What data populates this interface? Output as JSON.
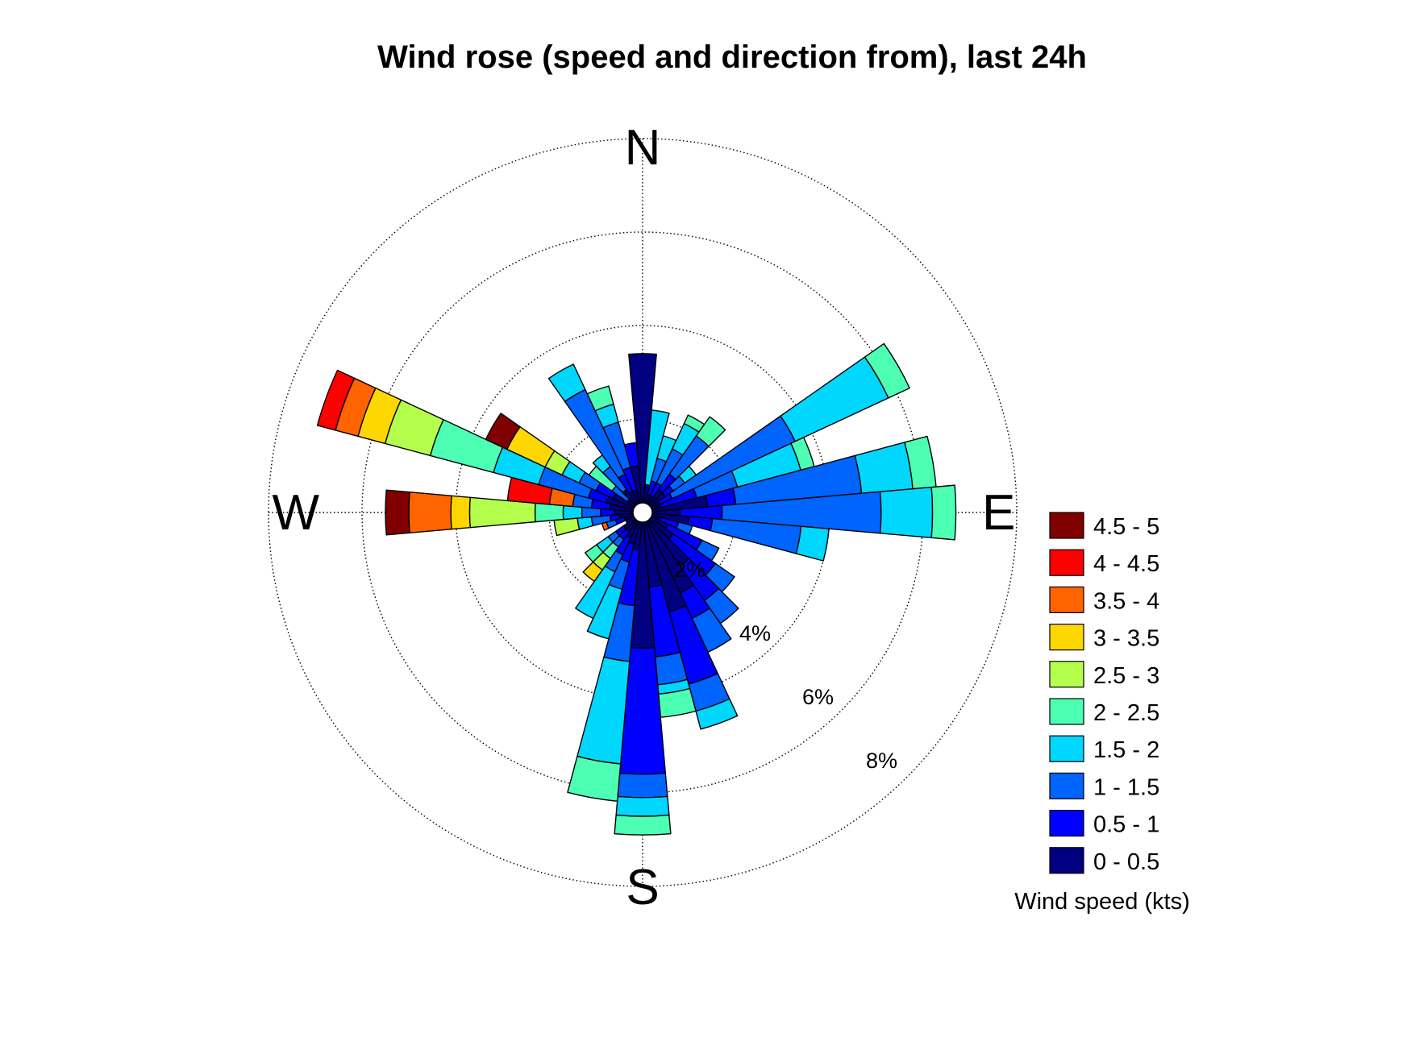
{
  "chart_data": {
    "type": "wind-rose",
    "title": "Wind rose (speed and direction from), last 24h",
    "directions_labels": [
      "N",
      "E",
      "S",
      "W"
    ],
    "radial_ticks": [
      2,
      4,
      6,
      8
    ],
    "radial_tick_labels": [
      "2%",
      "4%",
      "6%",
      "8%"
    ],
    "radial_max": 8,
    "radial_unit": "%",
    "grid": true,
    "legend_position": "right",
    "legend_title": "Wind speed (kts)",
    "bins": [
      {
        "label": "0 - 0.5",
        "color": "#000080"
      },
      {
        "label": "0.5 - 1",
        "color": "#0000ff"
      },
      {
        "label": "1 - 1.5",
        "color": "#0064ff"
      },
      {
        "label": "1.5 - 2",
        "color": "#00d7ff"
      },
      {
        "label": "2 - 2.5",
        "color": "#4dffb3"
      },
      {
        "label": "2.5 - 3",
        "color": "#b4ff4b"
      },
      {
        "label": "3 - 3.5",
        "color": "#ffd700"
      },
      {
        "label": "3.5 - 4",
        "color": "#ff6400"
      },
      {
        "label": "4 - 4.5",
        "color": "#ff0000"
      },
      {
        "label": "4.5 - 5",
        "color": "#800000"
      }
    ],
    "sector_width_deg": 10,
    "sectors": [
      {
        "dir": 0,
        "values": [
          3.4,
          0,
          0,
          0,
          0,
          0,
          0,
          0,
          0,
          0
        ]
      },
      {
        "dir": 10,
        "values": [
          0.6,
          0,
          0,
          1.6,
          0,
          0,
          0,
          0,
          0,
          0
        ]
      },
      {
        "dir": 20,
        "values": [
          0.4,
          0.3,
          0.5,
          0.5,
          0,
          0,
          0,
          0,
          0,
          0
        ]
      },
      {
        "dir": 30,
        "values": [
          0.4,
          0.3,
          0.8,
          0.6,
          0.2,
          0,
          0,
          0,
          0,
          0
        ]
      },
      {
        "dir": 40,
        "values": [
          0.6,
          0.4,
          1.0,
          0,
          0.5,
          0,
          0,
          0,
          0,
          0
        ]
      },
      {
        "dir": 50,
        "values": [
          0.6,
          0.2,
          0.3,
          0.3,
          0,
          0,
          0,
          0,
          0,
          0
        ]
      },
      {
        "dir": 60,
        "values": [
          0.4,
          0.3,
          2.9,
          2.2,
          0.5,
          0,
          0,
          0,
          0,
          0
        ]
      },
      {
        "dir": 70,
        "values": [
          0.4,
          0.8,
          0.9,
          1.4,
          0.3,
          0,
          0,
          0,
          0,
          0
        ]
      },
      {
        "dir": 80,
        "values": [
          1.4,
          0.6,
          2.7,
          1.1,
          0.5,
          0,
          0,
          0,
          0,
          0
        ]
      },
      {
        "dir": 90,
        "values": [
          0.8,
          0.9,
          3.4,
          1.1,
          0.5,
          0,
          0,
          0,
          0,
          0
        ]
      },
      {
        "dir": 100,
        "values": [
          1.0,
          0.5,
          1.9,
          0.6,
          0,
          0,
          0,
          0,
          0,
          0
        ]
      },
      {
        "dir": 110,
        "values": [
          0.4,
          0.4,
          0.3,
          0,
          0,
          0,
          0,
          0,
          0,
          0
        ]
      },
      {
        "dir": 120,
        "values": [
          0.6,
          0.8,
          0.4,
          0,
          0,
          0,
          0,
          0,
          0,
          0
        ]
      },
      {
        "dir": 130,
        "values": [
          0.8,
          1.1,
          0.5,
          0,
          0,
          0,
          0,
          0,
          0,
          0
        ]
      },
      {
        "dir": 140,
        "values": [
          1.4,
          0.9,
          0.6,
          0,
          0,
          0,
          0,
          0,
          0,
          0
        ]
      },
      {
        "dir": 150,
        "values": [
          1.9,
          0.6,
          0.8,
          0,
          0,
          0,
          0,
          0,
          0,
          0
        ]
      },
      {
        "dir": 160,
        "values": [
          2.2,
          1.6,
          0.6,
          0.4,
          0,
          0,
          0,
          0,
          0,
          0
        ]
      },
      {
        "dir": 170,
        "values": [
          1.6,
          1.5,
          0.6,
          0.2,
          0.5,
          0,
          0,
          0,
          0,
          0
        ]
      },
      {
        "dir": 180,
        "values": [
          2.9,
          2.7,
          0.5,
          0.4,
          0.4,
          0,
          0,
          0,
          0,
          0
        ]
      },
      {
        "dir": 190,
        "values": [
          0.8,
          1.2,
          1.2,
          2.2,
          0.8,
          0,
          0,
          0,
          0,
          0
        ]
      },
      {
        "dir": 200,
        "values": [
          0.7,
          0.4,
          0.6,
          1.1,
          0,
          0,
          0,
          0,
          0,
          0
        ]
      },
      {
        "dir": 210,
        "values": [
          0.6,
          0.4,
          0.4,
          1.1,
          0,
          0,
          0,
          0,
          0,
          0
        ]
      },
      {
        "dir": 220,
        "values": [
          0.5,
          0.2,
          0.2,
          0,
          0.3,
          0.3,
          0.3,
          0,
          0,
          0
        ]
      },
      {
        "dir": 230,
        "values": [
          0.5,
          0.2,
          0.2,
          0.3,
          0.3,
          0,
          0,
          0,
          0,
          0
        ]
      },
      {
        "dir": 240,
        "values": [
          0.4,
          0,
          0,
          0,
          0,
          0,
          0,
          0,
          0,
          0
        ]
      },
      {
        "dir": 250,
        "values": [
          0.4,
          0.2,
          0.2,
          0,
          0,
          0,
          0,
          0.1,
          0,
          0
        ]
      },
      {
        "dir": 260,
        "values": [
          0.5,
          0.2,
          0.4,
          0.3,
          0,
          0.5,
          0,
          0,
          0,
          0
        ]
      },
      {
        "dir": 270,
        "values": [
          0.6,
          0.3,
          0.4,
          0.4,
          0.6,
          1.4,
          0.4,
          0.9,
          0,
          0.5
        ]
      },
      {
        "dir": 280,
        "values": [
          0.7,
          0.4,
          0.4,
          0,
          0,
          0,
          0,
          0.5,
          0.9,
          0
        ]
      },
      {
        "dir": 290,
        "values": [
          0.8,
          0.4,
          1.1,
          1.0,
          1.4,
          1.0,
          0.6,
          0.5,
          0.4,
          0
        ]
      },
      {
        "dir": 300,
        "values": [
          0.7,
          0.4,
          0.4,
          0.4,
          0,
          0.4,
          0.9,
          0,
          0,
          0.5
        ]
      },
      {
        "dir": 310,
        "values": [
          0.4,
          0,
          0.4,
          0,
          0.6,
          0,
          0,
          0,
          0,
          0
        ]
      },
      {
        "dir": 320,
        "values": [
          0.6,
          0,
          0.6,
          0.3,
          0,
          0,
          0,
          0,
          0,
          0
        ]
      },
      {
        "dir": 330,
        "values": [
          0.5,
          0.4,
          2.0,
          0.6,
          0,
          0,
          0,
          0,
          0,
          0
        ]
      },
      {
        "dir": 340,
        "values": [
          0.5,
          0.5,
          1.0,
          0.4,
          0.4,
          0,
          0,
          0,
          0,
          0
        ]
      },
      {
        "dir": 350,
        "values": [
          1.0,
          0.5,
          0,
          0,
          0,
          0,
          0,
          0,
          0,
          0
        ]
      }
    ]
  }
}
